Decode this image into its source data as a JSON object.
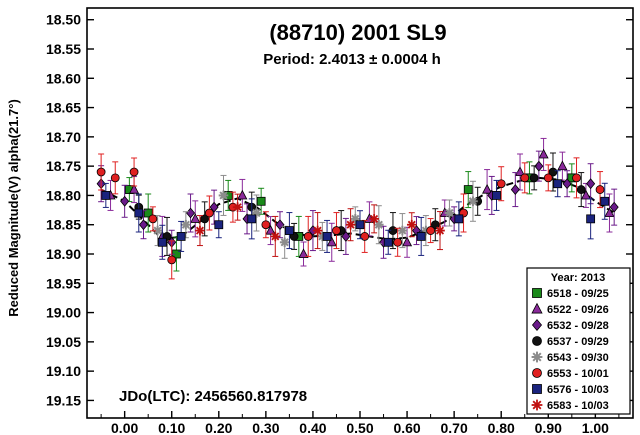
{
  "chart_data": {
    "type": "scatter",
    "title": "(88710) 2001 SL9",
    "subtitle": "Period: 2.4013 ± 0.0004 h",
    "ylabel": "Reduced Magnitude(V) alpha(21.7°)",
    "xlabel": "",
    "annotation": "JDo(LTC): 2456560.817978",
    "xlim": [
      -0.08,
      1.08
    ],
    "ylim": [
      19.18,
      18.48
    ],
    "y_inverted": true,
    "x_ticks": [
      "0.00",
      "0.10",
      "0.20",
      "0.30",
      "0.40",
      "0.50",
      "0.60",
      "0.70",
      "0.80",
      "0.90",
      "1.00"
    ],
    "x_tick_values": [
      0.0,
      0.1,
      0.2,
      0.3,
      0.4,
      0.5,
      0.6,
      0.7,
      0.8,
      0.9,
      1.0
    ],
    "y_ticks": [
      "18.50",
      "18.55",
      "18.60",
      "18.65",
      "18.70",
      "18.75",
      "18.80",
      "18.85",
      "18.90",
      "18.95",
      "19.00",
      "19.05",
      "19.10",
      "19.15"
    ],
    "y_tick_values": [
      18.5,
      18.55,
      18.6,
      18.65,
      18.7,
      18.75,
      18.8,
      18.85,
      18.9,
      18.95,
      19.0,
      19.05,
      19.1,
      19.15
    ],
    "legend": {
      "title": "Year: 2013",
      "placement": "bottom-right",
      "entries": [
        {
          "label": "6518 - 09/25",
          "marker": "square",
          "color": "#1a8a1a"
        },
        {
          "label": "6522 - 09/26",
          "marker": "triangle",
          "color": "#8a2a9a"
        },
        {
          "label": "6532 - 09/28",
          "marker": "diamond",
          "color": "#6a1a8a"
        },
        {
          "label": "6537 - 09/29",
          "marker": "circle",
          "color": "#111111"
        },
        {
          "label": "6543 - 09/30",
          "marker": "asterisk",
          "color": "#8c8c8c"
        },
        {
          "label": "6553 - 10/01",
          "marker": "circle",
          "color": "#e02020"
        },
        {
          "label": "6576 - 10/03",
          "marker": "square",
          "color": "#1a237e"
        },
        {
          "label": "6583 - 10/03",
          "marker": "star",
          "color": "#c01010"
        }
      ]
    },
    "fit_curve": {
      "x": [
        -0.05,
        0.0,
        0.05,
        0.08,
        0.12,
        0.16,
        0.2,
        0.24,
        0.28,
        0.32,
        0.36,
        0.4,
        0.44,
        0.48,
        0.52,
        0.56,
        0.6,
        0.64,
        0.68,
        0.72,
        0.76,
        0.8,
        0.84,
        0.88,
        0.92,
        0.96,
        1.0,
        1.04
      ],
      "y": [
        18.79,
        18.81,
        18.85,
        18.875,
        18.87,
        18.845,
        18.815,
        18.805,
        18.82,
        18.845,
        18.865,
        18.87,
        18.868,
        18.865,
        18.87,
        18.875,
        18.872,
        18.86,
        18.845,
        18.82,
        18.8,
        18.785,
        18.775,
        18.77,
        18.773,
        18.785,
        18.81,
        18.83
      ],
      "color": "#000000"
    },
    "series": [
      {
        "name": "6518 - 09/25",
        "x": [
          0.01,
          0.05,
          0.11,
          0.22,
          0.29,
          0.37,
          0.73,
          0.86,
          0.95
        ],
        "y": [
          18.79,
          18.83,
          18.9,
          18.8,
          18.81,
          18.87,
          18.79,
          18.77,
          18.77
        ]
      },
      {
        "name": "6522 - 09/26",
        "x": [
          -0.03,
          0.02,
          0.08,
          0.15,
          0.25,
          0.31,
          0.38,
          0.44,
          0.52,
          0.6,
          0.68,
          0.77,
          0.84,
          0.89,
          0.93,
          0.98,
          1.03
        ],
        "y": [
          18.8,
          18.79,
          18.87,
          18.84,
          18.8,
          18.86,
          18.9,
          18.88,
          18.84,
          18.88,
          18.83,
          18.79,
          18.76,
          18.73,
          18.75,
          18.8,
          18.83
        ]
      },
      {
        "name": "6532 - 09/28",
        "x": [
          -0.05,
          0.0,
          0.04,
          0.1,
          0.14,
          0.19,
          0.26,
          0.33,
          0.4,
          0.47,
          0.55,
          0.62,
          0.7,
          0.78,
          0.83,
          0.88,
          0.94,
          0.99,
          1.04
        ],
        "y": [
          18.78,
          18.81,
          18.85,
          18.88,
          18.83,
          18.82,
          18.84,
          18.85,
          18.86,
          18.87,
          18.88,
          18.86,
          18.84,
          18.8,
          18.79,
          18.75,
          18.78,
          18.78,
          18.82
        ]
      },
      {
        "name": "6537 - 09/29",
        "x": [
          0.03,
          0.09,
          0.17,
          0.27,
          0.36,
          0.46,
          0.57,
          0.66,
          0.75,
          0.87,
          0.91,
          0.97
        ],
        "y": [
          18.82,
          18.87,
          18.84,
          18.82,
          18.87,
          18.86,
          18.86,
          18.85,
          18.81,
          18.77,
          18.76,
          18.79
        ]
      },
      {
        "name": "6543 - 09/30",
        "x": [
          0.07,
          0.13,
          0.21,
          0.28,
          0.34,
          0.42,
          0.49,
          0.54,
          0.59,
          0.64,
          0.69,
          0.74
        ],
        "y": [
          18.86,
          18.85,
          18.8,
          18.83,
          18.88,
          18.87,
          18.84,
          18.85,
          18.86,
          18.86,
          18.83,
          18.81
        ]
      },
      {
        "name": "6553 - 10/01",
        "x": [
          -0.05,
          -0.02,
          0.02,
          0.06,
          0.1,
          0.18,
          0.23,
          0.3,
          0.39,
          0.45,
          0.51,
          0.58,
          0.65,
          0.72,
          0.8,
          0.85,
          0.9,
          0.96,
          1.01
        ],
        "y": [
          18.76,
          18.77,
          18.76,
          18.84,
          18.91,
          18.83,
          18.82,
          18.85,
          18.87,
          18.86,
          18.87,
          18.88,
          18.86,
          18.83,
          18.78,
          18.77,
          18.77,
          18.77,
          18.79
        ]
      },
      {
        "name": "6576 - 10/03",
        "x": [
          -0.04,
          0.03,
          0.08,
          0.12,
          0.2,
          0.27,
          0.35,
          0.43,
          0.5,
          0.56,
          0.63,
          0.71,
          0.79,
          0.92,
          0.99,
          1.02
        ],
        "y": [
          18.8,
          18.83,
          18.88,
          18.87,
          18.85,
          18.84,
          18.86,
          18.87,
          18.85,
          18.88,
          18.87,
          18.84,
          18.8,
          18.78,
          18.84,
          18.81
        ]
      },
      {
        "name": "6583 - 10/03",
        "x": [
          0.16,
          0.24,
          0.32,
          0.41,
          0.48,
          0.53,
          0.61,
          0.67
        ],
        "y": [
          18.86,
          18.82,
          18.87,
          18.86,
          18.85,
          18.84,
          18.85,
          18.86
        ]
      }
    ]
  }
}
